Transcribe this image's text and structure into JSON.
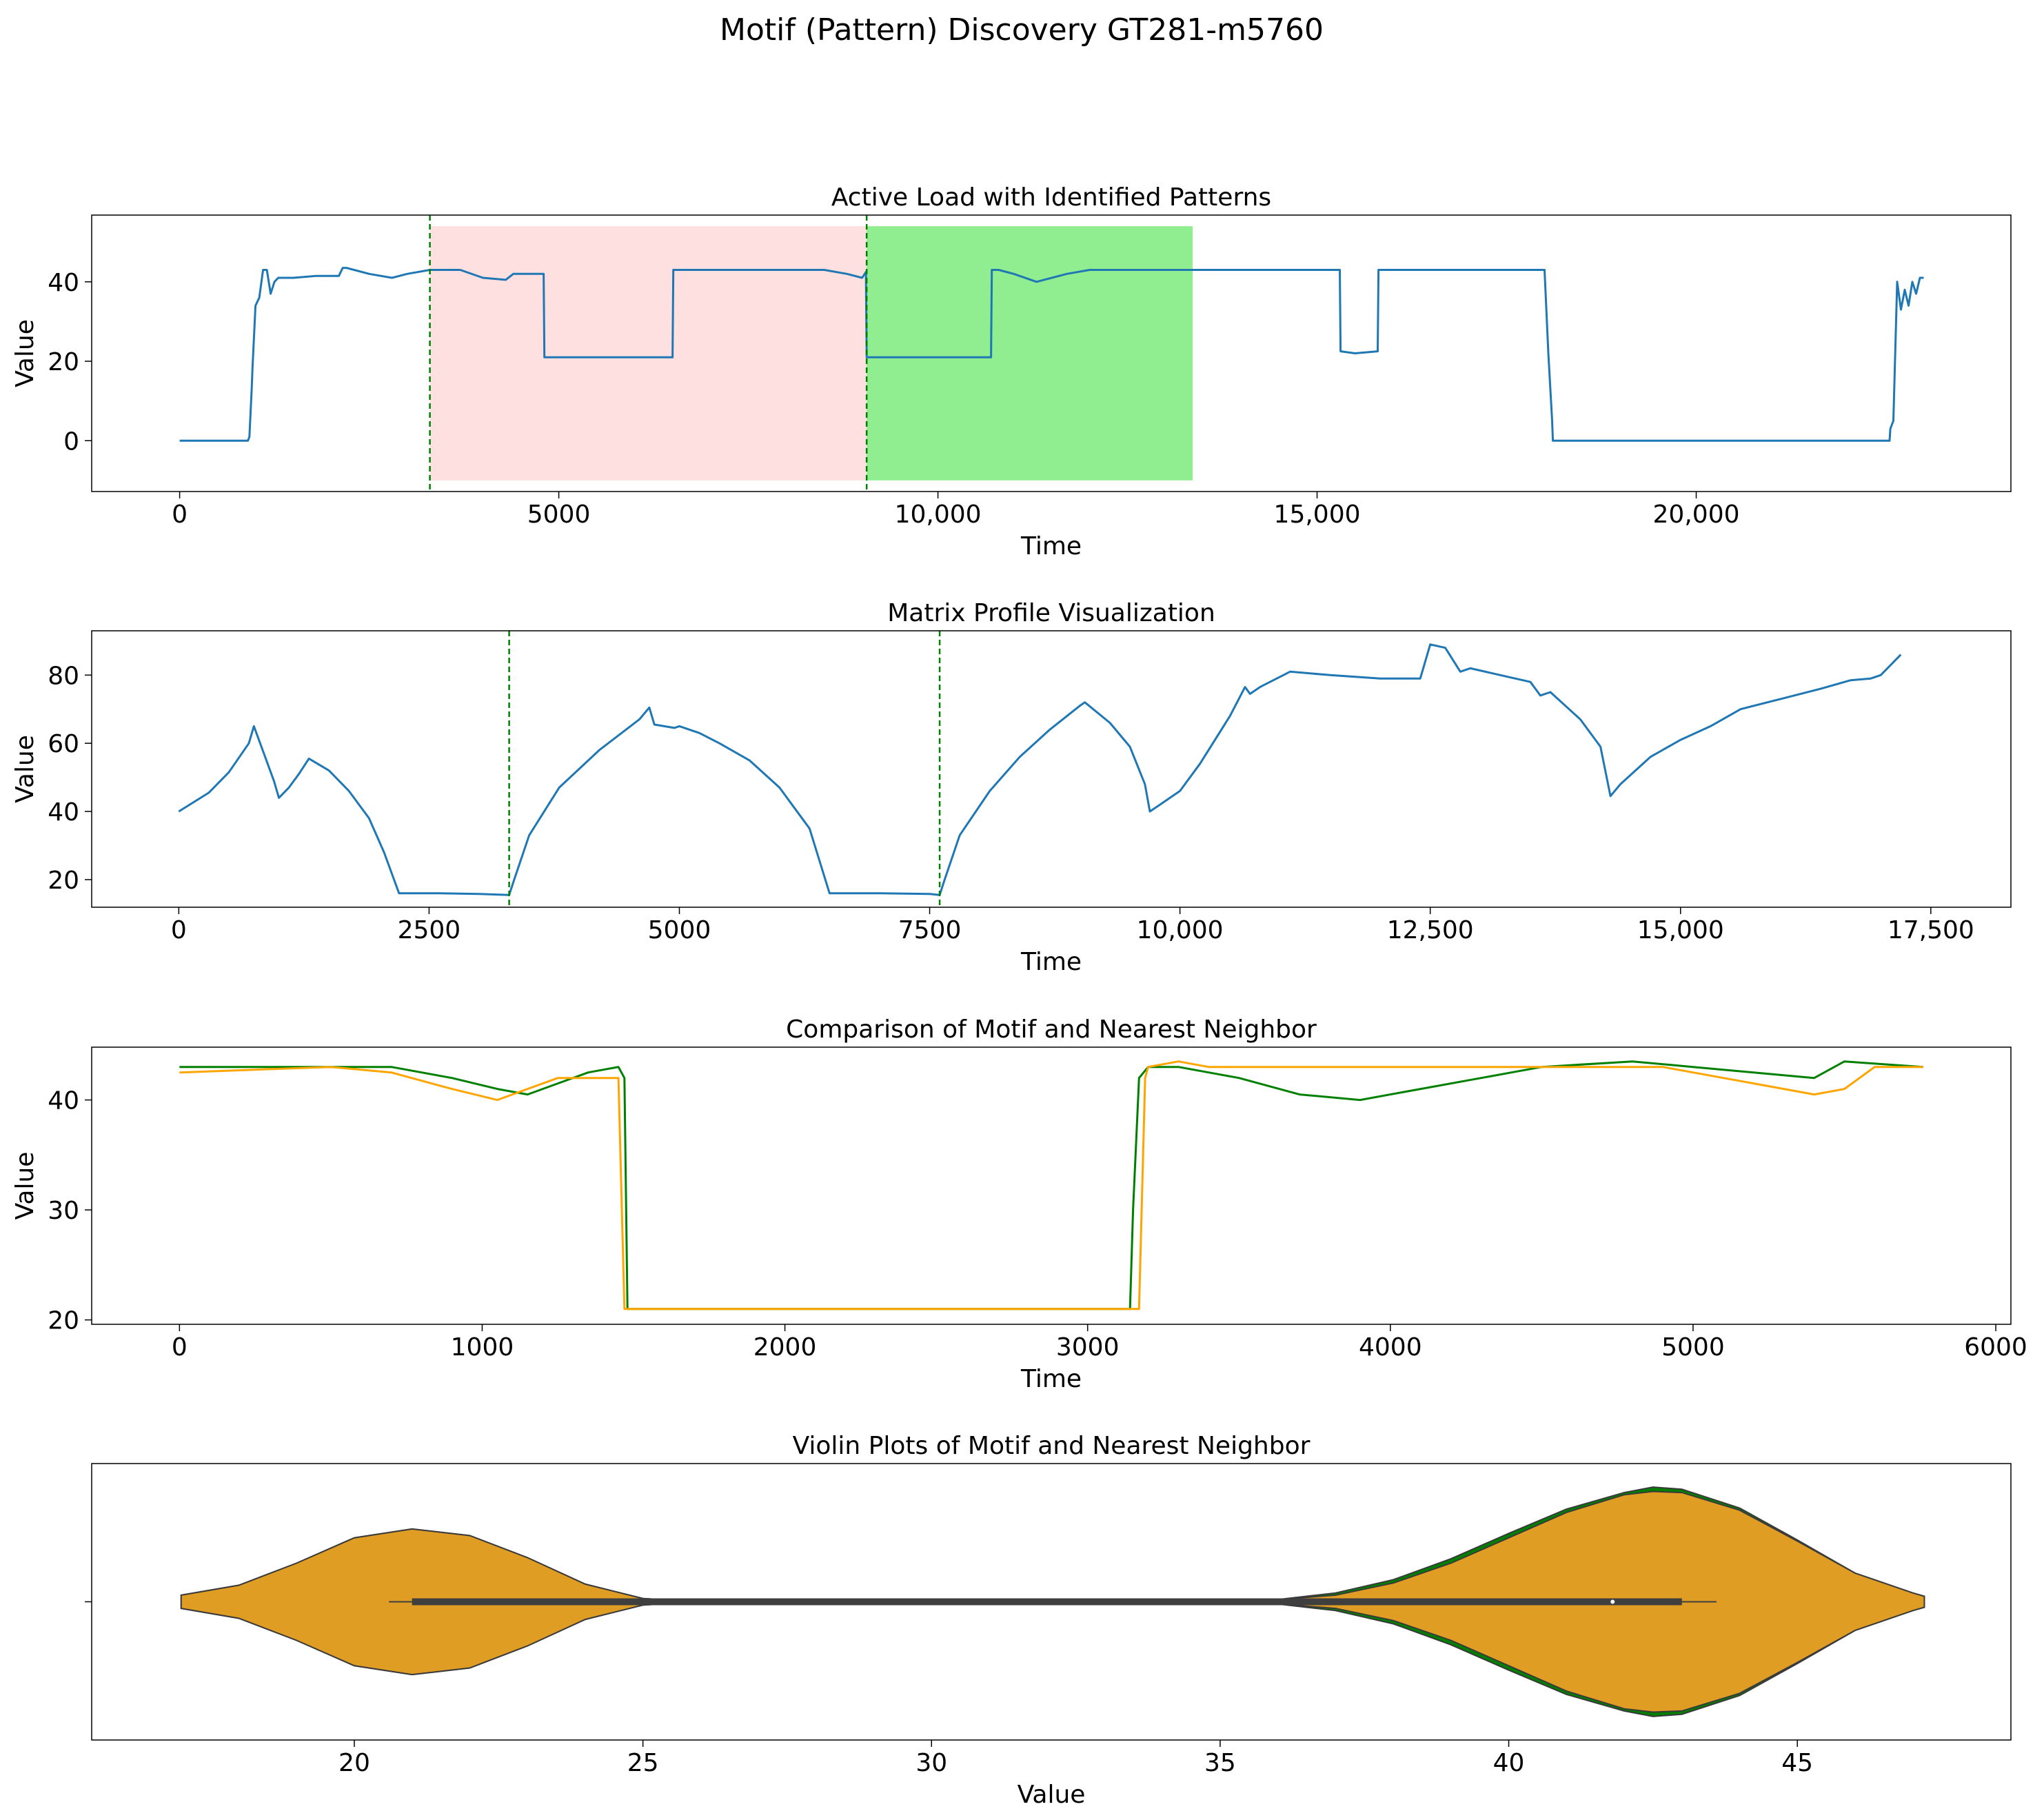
{
  "suptitle": "Motif (Pattern) Discovery GT281-m5760",
  "colors": {
    "series": "#1f77b4",
    "motif": "#008000",
    "neighbor": "#ffa500",
    "violin": "#e09d24",
    "pink": "#ffe0e0",
    "green": "#90ee90",
    "marker": "#008000"
  },
  "chart_data": [
    {
      "type": "line",
      "title": "Active Load with Identified Patterns",
      "xlabel": "Time",
      "ylabel": "Value",
      "xlim": [
        -1160,
        24150
      ],
      "ylim": [
        -12.8,
        56.8
      ],
      "xticks": [
        0,
        5000,
        10000,
        15000,
        20000
      ],
      "xtick_labels": [
        "0",
        "5000",
        "10,000",
        "15,000",
        "20,000"
      ],
      "yticks": [
        0,
        20,
        40
      ],
      "ytick_labels": [
        "0",
        "20",
        "40"
      ],
      "shaded_regions": [
        {
          "name": "motif-region",
          "x0": 3300,
          "x1": 9060,
          "y0": -10,
          "y1": 54,
          "color": "pink"
        },
        {
          "name": "neighbor-region",
          "x0": 9060,
          "x1": 13360,
          "y0": -10,
          "y1": 54,
          "color": "green"
        }
      ],
      "vlines": [
        3300,
        9060
      ],
      "series": [
        {
          "name": "active-load",
          "color": "series",
          "x": [
            0,
            900,
            920,
            950,
            960,
            1000,
            1050,
            1100,
            1150,
            1200,
            1250,
            1300,
            1500,
            1800,
            2100,
            2150,
            2200,
            2300,
            2500,
            2800,
            3000,
            3300,
            3700,
            4000,
            4300,
            4400,
            4700,
            4800,
            4810,
            5000,
            6000,
            6500,
            6510,
            6600,
            7000,
            8000,
            8500,
            8800,
            9000,
            9050,
            9060,
            9500,
            10700,
            10710,
            10800,
            11000,
            11300,
            11700,
            12000,
            12500,
            13000,
            13500,
            14000,
            15000,
            15300,
            15310,
            15500,
            15800,
            15810,
            16000,
            17000,
            18000,
            18050,
            18100,
            18110,
            20000,
            22500,
            22550,
            22560,
            22600,
            22650,
            22700,
            22750,
            22800,
            22850,
            22900,
            22950,
            23000
          ],
          "y": [
            0,
            0,
            1,
            13,
            18,
            34,
            36,
            43,
            43,
            37,
            40,
            41,
            41,
            41.5,
            41.5,
            43.5,
            43.5,
            43,
            42,
            41,
            42,
            43,
            43,
            41,
            40.5,
            42,
            42,
            42,
            21,
            21,
            21,
            21,
            43,
            43,
            43,
            43,
            43,
            42,
            41,
            42.5,
            21,
            21,
            21,
            43,
            43,
            42,
            40,
            42,
            43,
            43,
            43,
            43,
            43,
            43,
            43,
            22.5,
            22,
            22.5,
            43,
            43,
            43,
            43,
            22,
            5,
            0,
            0,
            0,
            0,
            3,
            5,
            40,
            33,
            38,
            34,
            40,
            37,
            41,
            41
          ]
        }
      ]
    },
    {
      "type": "line",
      "title": "Matrix Profile Visualization",
      "xlabel": "Time",
      "ylabel": "Value",
      "xlim": [
        -870,
        18300
      ],
      "ylim": [
        11.9,
        93.0
      ],
      "xticks": [
        0,
        2500,
        5000,
        7500,
        10000,
        12500,
        15000,
        17500
      ],
      "xtick_labels": [
        "0",
        "2500",
        "5000",
        "7500",
        "10,000",
        "12,500",
        "15,000",
        "17,500"
      ],
      "yticks": [
        20,
        40,
        60,
        80
      ],
      "ytick_labels": [
        "20",
        "40",
        "60",
        "80"
      ],
      "vlines": [
        3300,
        7600
      ],
      "series": [
        {
          "name": "matrix-profile",
          "color": "series",
          "x": [
            0,
            300,
            500,
            700,
            750,
            850,
            950,
            1000,
            1100,
            1200,
            1300,
            1500,
            1700,
            1900,
            2050,
            2200,
            2600,
            3000,
            3300,
            3350,
            3500,
            3800,
            4200,
            4600,
            4700,
            4750,
            4950,
            5000,
            5200,
            5400,
            5700,
            6000,
            6300,
            6500,
            7000,
            7500,
            7600,
            7650,
            7800,
            8100,
            8400,
            8700,
            9000,
            9050,
            9300,
            9500,
            9650,
            9700,
            9800,
            10000,
            10200,
            10500,
            10650,
            10700,
            10800,
            11100,
            11500,
            12000,
            12400,
            12500,
            12650,
            12800,
            12900,
            13200,
            13500,
            13600,
            13700,
            14000,
            14200,
            14300,
            14400,
            14700,
            15000,
            15300,
            15600,
            16000,
            16400,
            16700,
            16900,
            17000,
            17200
          ],
          "y": [
            40,
            45.5,
            51.5,
            60,
            65,
            57,
            49,
            44,
            47,
            51,
            55.5,
            52,
            46,
            38,
            28,
            16,
            16,
            15.8,
            15.5,
            20,
            33,
            47,
            58,
            67,
            70.5,
            65.5,
            64.5,
            65,
            63,
            60,
            55,
            47,
            35,
            16,
            16,
            15.8,
            15.5,
            20,
            33,
            46,
            56,
            64,
            71,
            72,
            66,
            59,
            48,
            40,
            42,
            46,
            54,
            68,
            76.5,
            74.5,
            76.5,
            81,
            80,
            79,
            79,
            89,
            88,
            81,
            82,
            80,
            78,
            74,
            75,
            67,
            59,
            44.5,
            48,
            56,
            61,
            65,
            70,
            73,
            76,
            78.5,
            79,
            80,
            86
          ]
        }
      ]
    },
    {
      "type": "line",
      "title": "Comparison of Motif and Nearest Neighbor",
      "xlabel": "Time",
      "ylabel": "Value",
      "xlim": [
        -290,
        6050
      ],
      "ylim": [
        19.6,
        44.8
      ],
      "xticks": [
        0,
        1000,
        2000,
        3000,
        4000,
        5000,
        6000
      ],
      "xtick_labels": [
        "0",
        "1000",
        "2000",
        "3000",
        "4000",
        "5000",
        "6000"
      ],
      "yticks": [
        20,
        30,
        40
      ],
      "ytick_labels": [
        "20",
        "30",
        "40"
      ],
      "series": [
        {
          "name": "motif",
          "color": "motif",
          "x": [
            0,
            500,
            700,
            900,
            1050,
            1150,
            1250,
            1350,
            1450,
            1470,
            1480,
            1500,
            2000,
            2500,
            3000,
            3140,
            3150,
            3170,
            3200,
            3300,
            3500,
            3700,
            3900,
            4100,
            4300,
            4400,
            4500,
            4800,
            5000,
            5200,
            5400,
            5500,
            5760
          ],
          "y": [
            43,
            43,
            43,
            42,
            41,
            40.5,
            41.5,
            42.5,
            43,
            42,
            21,
            21,
            21,
            21,
            21,
            21,
            30,
            42,
            43,
            43,
            42,
            40.5,
            40,
            41,
            42,
            42.5,
            43,
            43.5,
            43,
            42.5,
            42,
            43.5,
            43
          ]
        },
        {
          "name": "nearest-neighbor",
          "color": "neighbor",
          "x": [
            0,
            500,
            700,
            900,
            1050,
            1150,
            1250,
            1400,
            1450,
            1470,
            1500,
            2000,
            2500,
            3000,
            3150,
            3170,
            3190,
            3200,
            3300,
            3400,
            4000,
            4500,
            4900,
            5000,
            5200,
            5400,
            5500,
            5600,
            5760
          ],
          "y": [
            42.5,
            43,
            42.5,
            41,
            40,
            41,
            42,
            42,
            42,
            21,
            21,
            21,
            21,
            21,
            21,
            21,
            42,
            43,
            43.5,
            43,
            43,
            43,
            43,
            42.5,
            41.5,
            40.5,
            41,
            43,
            43
          ]
        }
      ]
    },
    {
      "type": "violin",
      "title": "Violin Plots of Motif and Nearest Neighbor",
      "xlabel": "Value",
      "ylabel": "",
      "xlim": [
        15.45,
        48.7
      ],
      "xticks": [
        20,
        25,
        30,
        35,
        40,
        45
      ],
      "xtick_labels": [
        "20",
        "25",
        "30",
        "35",
        "40",
        "45"
      ],
      "violins": [
        {
          "name": "motif-violin",
          "color": "motif",
          "density_x": [
            17,
            18,
            19,
            20,
            21,
            22,
            23,
            24,
            25,
            26,
            30,
            34,
            36,
            37,
            38,
            39,
            40,
            41,
            42,
            42.5,
            43,
            44,
            45,
            46,
            47,
            47.2
          ],
          "density_half_width": [
            0.06,
            0.15,
            0.35,
            0.58,
            0.66,
            0.6,
            0.4,
            0.16,
            0.03,
            0,
            0,
            0,
            0.02,
            0.08,
            0.2,
            0.39,
            0.62,
            0.84,
            0.99,
            1.04,
            1.02,
            0.85,
            0.56,
            0.26,
            0.08,
            0.05
          ],
          "whisker": [
            20.6,
            43.6
          ],
          "q1": 21,
          "q3": 43,
          "median": 41.8
        },
        {
          "name": "neighbor-violin",
          "color": "violin",
          "density_x": [
            17,
            18,
            19,
            20,
            21,
            22,
            23,
            24,
            25,
            26,
            30,
            34,
            36,
            37,
            38,
            39,
            40,
            41,
            42,
            42.5,
            43,
            44,
            45,
            46,
            47,
            47.2
          ],
          "density_half_width": [
            0.06,
            0.15,
            0.35,
            0.58,
            0.66,
            0.6,
            0.4,
            0.16,
            0.03,
            0,
            0,
            0,
            0.02,
            0.06,
            0.17,
            0.35,
            0.58,
            0.81,
            0.97,
            1.0,
            0.99,
            0.83,
            0.55,
            0.26,
            0.08,
            0.05
          ],
          "whisker": [
            20.6,
            43.6
          ],
          "q1": 21,
          "q3": 43,
          "median": 41.8
        }
      ]
    }
  ]
}
